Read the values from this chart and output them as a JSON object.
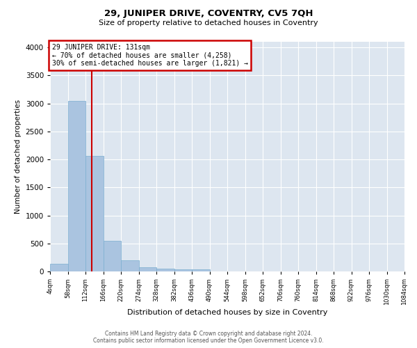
{
  "title": "29, JUNIPER DRIVE, COVENTRY, CV5 7QH",
  "subtitle": "Size of property relative to detached houses in Coventry",
  "xlabel": "Distribution of detached houses by size in Coventry",
  "ylabel": "Number of detached properties",
  "bin_edges": [
    4,
    58,
    112,
    166,
    220,
    274,
    328,
    382,
    436,
    490,
    544,
    598,
    652,
    706,
    760,
    814,
    868,
    922,
    976,
    1030,
    1084
  ],
  "bin_counts": [
    140,
    3050,
    2060,
    545,
    200,
    80,
    55,
    40,
    40,
    0,
    0,
    0,
    0,
    0,
    0,
    0,
    0,
    0,
    0,
    0
  ],
  "bar_color": "#aac4e0",
  "bar_edge_color": "#7aaed0",
  "vline_x": 131,
  "vline_color": "#cc0000",
  "annotation_lines": [
    "29 JUNIPER DRIVE: 131sqm",
    "← 70% of detached houses are smaller (4,258)",
    "30% of semi-detached houses are larger (1,821) →"
  ],
  "annotation_box_color": "#cc0000",
  "ylim": [
    0,
    4100
  ],
  "yticks": [
    0,
    500,
    1000,
    1500,
    2000,
    2500,
    3000,
    3500,
    4000
  ],
  "background_color": "#dde6f0",
  "grid_color": "#ffffff",
  "footer_line1": "Contains HM Land Registry data © Crown copyright and database right 2024.",
  "footer_line2": "Contains public sector information licensed under the Open Government Licence v3.0."
}
